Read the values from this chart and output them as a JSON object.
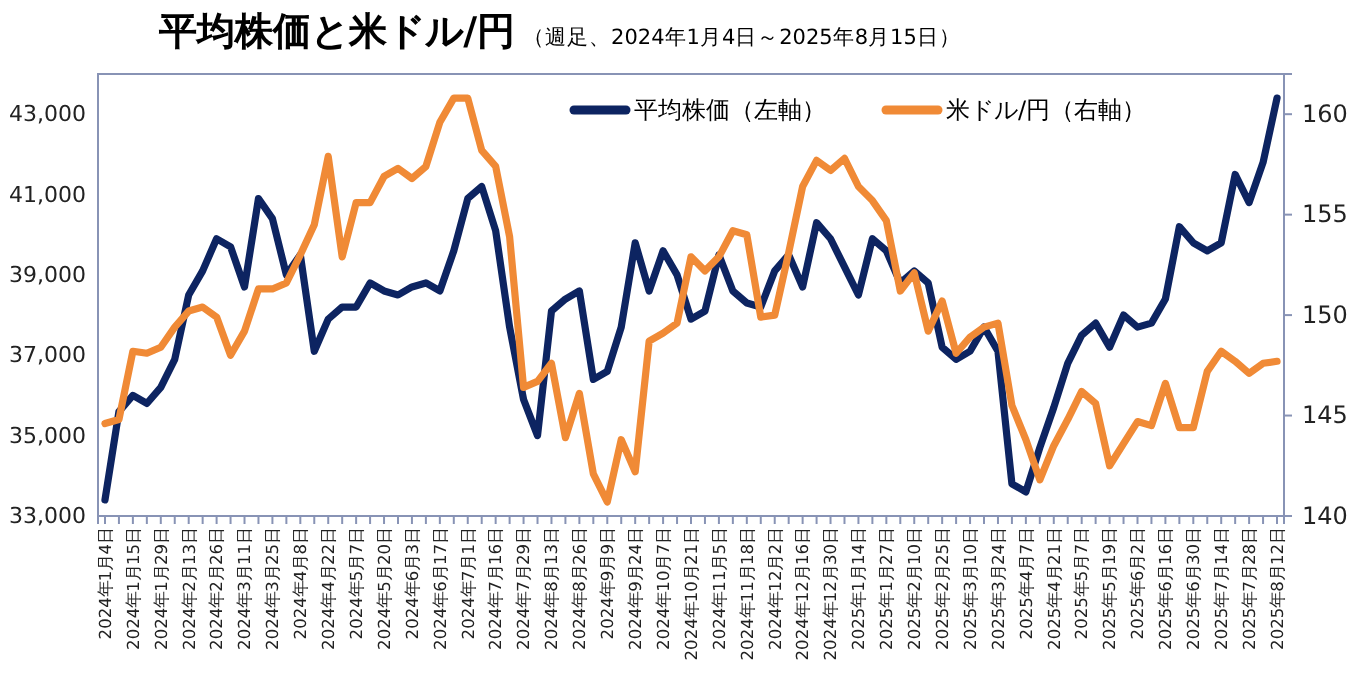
{
  "chart_data": {
    "type": "line",
    "title": "平均株価と米ドル/円",
    "subtitle": "（週足、2024年1月4日～2025年8月15日）",
    "categories": [
      "2024年1月4日",
      null,
      "2024年1月15日",
      null,
      "2024年1月29日",
      null,
      "2024年2月13日",
      null,
      "2024年2月26日",
      null,
      "2024年3月11日",
      null,
      "2024年3月25日",
      null,
      "2024年4月8日",
      null,
      "2024年4月22日",
      null,
      "2024年5月7日",
      null,
      "2024年5月20日",
      null,
      "2024年6月3日",
      null,
      "2024年6月17日",
      null,
      "2024年7月1日",
      null,
      "2024年7月16日",
      null,
      "2024年7月29日",
      null,
      "2024年8月13日",
      null,
      "2024年8月26日",
      null,
      "2024年9月9日",
      null,
      "2024年9月24日",
      null,
      "2024年10月7日",
      null,
      "2024年10月21日",
      null,
      "2024年11月5日",
      null,
      "2024年11月18日",
      null,
      "2024年12月2日",
      null,
      "2024年12月16日",
      null,
      "2024年12月30日",
      null,
      "2025年1月14日",
      null,
      "2025年1月27日",
      null,
      "2025年2月10日",
      null,
      "2025年2月25日",
      null,
      "2025年3月10日",
      null,
      "2025年3月24日",
      null,
      "2025年4月7日",
      null,
      "2025年4月21日",
      null,
      "2025年5月7日",
      null,
      "2025年5月19日",
      null,
      "2025年6月2日",
      null,
      "2025年6月16日",
      null,
      "2025年6月30日",
      null,
      "2025年7月14日",
      null,
      "2025年7月28日",
      null,
      "2025年8月12日"
    ],
    "series": [
      {
        "name": "平均株価（左軸）",
        "color": "#0d2461",
        "values": [
          33400,
          35600,
          36000,
          35800,
          36200,
          36900,
          38500,
          39100,
          39900,
          39700,
          38700,
          40900,
          40400,
          39000,
          39500,
          37100,
          37900,
          38200,
          38200,
          38800,
          38600,
          38500,
          38700,
          38800,
          38600,
          39600,
          40900,
          41200,
          40100,
          37700,
          35900,
          35000,
          38100,
          38400,
          38600,
          36400,
          36600,
          37700,
          39800,
          38600,
          39600,
          39000,
          37900,
          38100,
          39500,
          38600,
          38300,
          38200,
          39100,
          39500,
          38700,
          40300,
          39900,
          39200,
          38500,
          39900,
          39600,
          38800,
          39100,
          38800,
          37200,
          36900,
          37100,
          37700,
          37100,
          33800,
          33600,
          34700,
          35700,
          36800,
          37500,
          37800,
          37200,
          38000,
          37700,
          37800,
          38400,
          40200,
          39800,
          39600,
          39800,
          41500,
          40800,
          41800,
          43400
        ]
      },
      {
        "name": "米ドル/円（右軸）",
        "color": "#f08a36",
        "axis": "y2",
        "values": [
          144.6,
          144.8,
          148.2,
          148.1,
          148.4,
          149.4,
          150.2,
          150.4,
          149.9,
          148.0,
          149.2,
          151.3,
          151.3,
          151.6,
          153.0,
          154.5,
          157.9,
          152.9,
          155.6,
          155.6,
          156.9,
          157.3,
          156.8,
          157.4,
          159.6,
          160.8,
          160.8,
          158.2,
          157.4,
          153.9,
          146.4,
          146.7,
          147.6,
          143.9,
          146.1,
          142.1,
          140.7,
          143.8,
          142.2,
          148.7,
          149.1,
          149.6,
          152.9,
          152.2,
          152.9,
          154.2,
          154.0,
          149.9,
          150.0,
          153.1,
          156.4,
          157.7,
          157.2,
          157.8,
          156.4,
          155.7,
          154.7,
          151.2,
          152.1,
          149.2,
          150.7,
          148.1,
          148.9,
          149.4,
          149.6,
          145.5,
          143.8,
          141.8,
          143.5,
          144.8,
          146.2,
          145.6,
          142.5,
          143.6,
          144.7,
          144.5,
          146.6,
          144.4,
          144.4,
          147.2,
          148.2,
          147.7,
          147.1,
          147.6,
          147.7
        ]
      }
    ],
    "ylim": [
      33000,
      44000
    ],
    "yticks": [
      {
        "value": 33000,
        "label": "33,000"
      },
      {
        "value": 35000,
        "label": "35,000"
      },
      {
        "value": 37000,
        "label": "37,000"
      },
      {
        "value": 39000,
        "label": "39,000"
      },
      {
        "value": 41000,
        "label": "41,000"
      },
      {
        "value": 43000,
        "label": "43,000"
      }
    ],
    "y2lim": [
      140,
      162
    ],
    "y2ticks": [
      140,
      145,
      150,
      155,
      160
    ],
    "legend": "top right",
    "grid": false,
    "marker": "none",
    "line_style": "solid"
  }
}
